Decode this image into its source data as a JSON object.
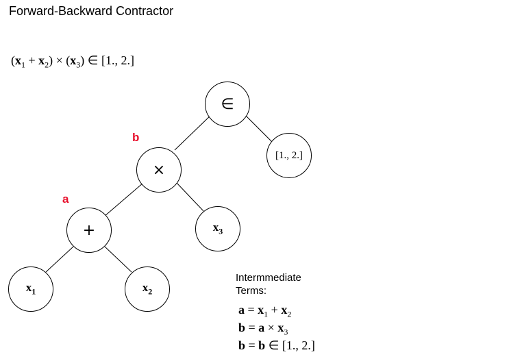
{
  "title": "Forward-Backward Contractor",
  "expression": {
    "open1": "(",
    "x1": "x",
    "x1_sub": "1",
    "plus": " + ",
    "x2": "x",
    "x2_sub": "2",
    "close1": ") × (",
    "x3": "x",
    "x3_sub": "3",
    "close2": ") ∈ [1., 2.]"
  },
  "tree": {
    "root": {
      "symbol": "∈"
    },
    "interval": {
      "text": "[1., 2.]"
    },
    "times": {
      "symbol": "×",
      "tag": "b"
    },
    "plus": {
      "symbol": "+",
      "tag": "a"
    },
    "x1": {
      "var": "x",
      "sub": "1"
    },
    "x2": {
      "var": "x",
      "sub": "2"
    },
    "x3": {
      "var": "x",
      "sub": "3"
    }
  },
  "intermediate": {
    "heading_line1": "Intermmediate",
    "heading_line2": "Terms:",
    "term1": {
      "lhs": "a",
      "eq": " = ",
      "x1": "x",
      "x1_sub": "1",
      "op": " + ",
      "x2": "x",
      "x2_sub": "2"
    },
    "term2": {
      "lhs": "b",
      "eq": " = ",
      "a": "a",
      "op": " × ",
      "x3": "x",
      "x3_sub": "3"
    },
    "term3": {
      "lhs": "b",
      "eq": " = ",
      "b": "b",
      "rest": " ∈ [1., 2.]"
    }
  }
}
